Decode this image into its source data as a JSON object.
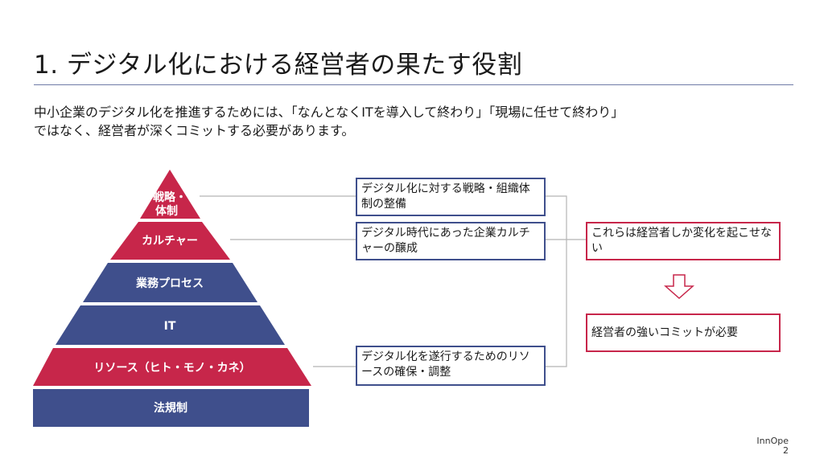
{
  "title": "1. デジタル化における経営者の果たす役割",
  "intro": {
    "line1": "中小企業のデジタル化を推進するためには、「なんとなくITを導入して終わり」「現場に任せて終わり」",
    "line2": "ではなく、経営者が深くコミットする必要があります。"
  },
  "pyramid": {
    "tiers": [
      {
        "line1": "戦略・",
        "line2": "体制"
      },
      {
        "label": "カルチャー"
      },
      {
        "label": "業務プロセス"
      },
      {
        "label": "IT"
      },
      {
        "label": "リソース（ヒト・モノ・カネ）"
      },
      {
        "label": "法規制"
      }
    ]
  },
  "callouts": {
    "strategy": "デジタル化に対する戦略・組織体制の整備",
    "culture": "デジタル時代にあった企業カルチャーの醸成",
    "resources": "デジタル化を遂行するためのリソースの確保・調整"
  },
  "conclusion": {
    "top": "これらは経営者しか変化を起こせない",
    "bottom": "経営者の強いコミットが必要",
    "arrow_icon": "down-arrow-icon"
  },
  "footer": {
    "brand": "InnOpe",
    "page_number": "2"
  },
  "colors": {
    "red": "#c7264a",
    "blue": "#3f4f8c",
    "line": "#b5b5b5"
  }
}
